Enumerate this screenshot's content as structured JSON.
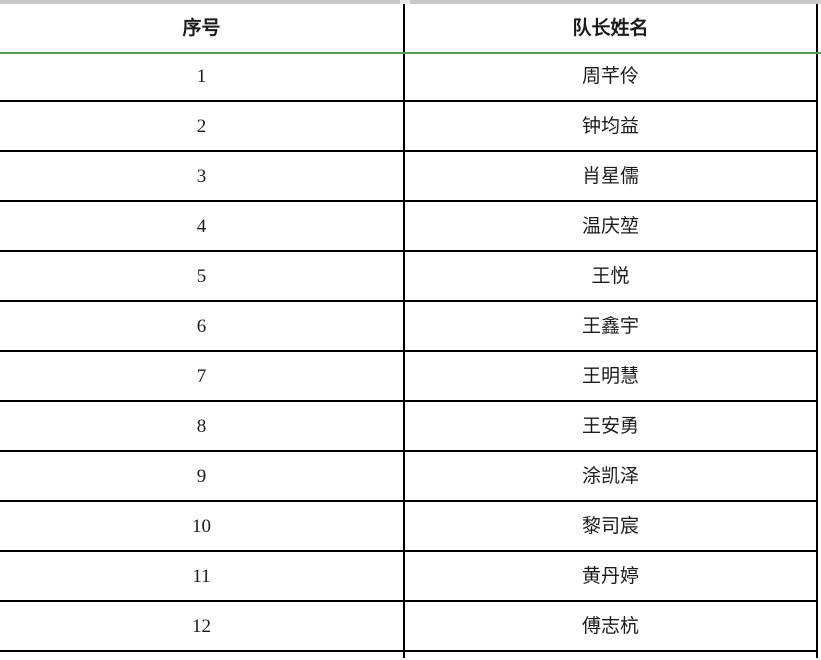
{
  "table": {
    "columns": [
      "序号",
      "队长姓名"
    ],
    "rows": [
      {
        "num": "1",
        "name": "周芊伶"
      },
      {
        "num": "2",
        "name": "钟均益"
      },
      {
        "num": "3",
        "name": "肖星儒"
      },
      {
        "num": "4",
        "name": "温庆堃"
      },
      {
        "num": "5",
        "name": "王悦"
      },
      {
        "num": "6",
        "name": "王鑫宇"
      },
      {
        "num": "7",
        "name": "王明慧"
      },
      {
        "num": "8",
        "name": "王安勇"
      },
      {
        "num": "9",
        "name": "涂凯泽"
      },
      {
        "num": "10",
        "name": "黎司宸"
      },
      {
        "num": "11",
        "name": "黄丹婷"
      },
      {
        "num": "12",
        "name": "傅志杭"
      }
    ]
  },
  "colors": {
    "header_rule_green": "#579c57",
    "grid_line": "#000000",
    "top_strip": "#c9c9c9"
  }
}
